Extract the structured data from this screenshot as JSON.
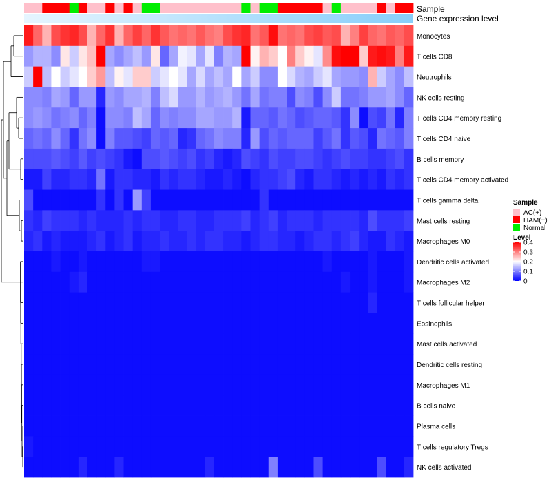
{
  "chart_data": {
    "type": "heatmap",
    "annotations": {
      "sample_label": "Sample",
      "gene_label": "Gene expression level",
      "sample_groups": [
        "AC",
        "AC",
        "HAM",
        "HAM",
        "HAM",
        "Normal",
        "HAM",
        "AC",
        "AC",
        "HAM",
        "AC",
        "HAM",
        "AC",
        "Normal",
        "Normal",
        "AC",
        "AC",
        "AC",
        "AC",
        "AC",
        "AC",
        "AC",
        "AC",
        "AC",
        "Normal",
        "AC",
        "Normal",
        "Normal",
        "HAM",
        "HAM",
        "HAM",
        "HAM",
        "HAM",
        "AC",
        "Normal",
        "AC",
        "AC",
        "AC",
        "AC",
        "HAM",
        "AC",
        "HAM",
        "HAM"
      ]
    },
    "rows": [
      "Monocytes",
      "T cells CD8",
      "Neutrophils",
      "NK cells resting",
      "T cells CD4 memory resting",
      "T cells CD4 naive",
      "B cells memory",
      "T cells CD4 memory activated",
      "T cells gamma delta",
      "Mast cells resting",
      "Macrophages M0",
      "Dendritic cells activated",
      "Macrophages M2",
      "T cells follicular helper",
      "Eosinophils",
      "Mast cells activated",
      "Dendritic cells resting",
      "Macrophages M1",
      "B cells naive",
      "Plasma cells",
      "T cells regulatory  Tregs",
      "NK cells activated"
    ],
    "values": [
      [
        0.38,
        0.32,
        0.26,
        0.34,
        0.36,
        0.37,
        0.34,
        0.26,
        0.32,
        0.36,
        0.26,
        0.32,
        0.35,
        0.32,
        0.36,
        0.33,
        0.31,
        0.32,
        0.31,
        0.33,
        0.31,
        0.3,
        0.34,
        0.36,
        0.37,
        0.31,
        0.33,
        0.39,
        0.31,
        0.32,
        0.31,
        0.34,
        0.35,
        0.33,
        0.34,
        0.26,
        0.3,
        0.35,
        0.32,
        0.31,
        0.33,
        0.32,
        0.34
      ],
      [
        0.12,
        0.14,
        0.14,
        0.11,
        0.22,
        0.16,
        0.22,
        0.25,
        0.4,
        0.13,
        0.11,
        0.13,
        0.15,
        0.12,
        0.22,
        0.08,
        0.13,
        0.19,
        0.18,
        0.13,
        0.18,
        0.1,
        0.14,
        0.13,
        0.4,
        0.21,
        0.26,
        0.24,
        0.2,
        0.3,
        0.24,
        0.21,
        0.18,
        0.29,
        0.39,
        0.4,
        0.4,
        0.24,
        0.38,
        0.39,
        0.38,
        0.3,
        0.38
      ],
      [
        0.16,
        0.4,
        0.15,
        0.2,
        0.16,
        0.18,
        0.2,
        0.24,
        0.28,
        0.15,
        0.21,
        0.18,
        0.24,
        0.24,
        0.16,
        0.18,
        0.2,
        0.18,
        0.13,
        0.17,
        0.13,
        0.15,
        0.13,
        0.2,
        0.13,
        0.16,
        0.11,
        0.11,
        0.2,
        0.17,
        0.14,
        0.13,
        0.16,
        0.18,
        0.13,
        0.12,
        0.12,
        0.11,
        0.26,
        0.16,
        0.13,
        0.11,
        0.15
      ],
      [
        0.11,
        0.11,
        0.1,
        0.13,
        0.12,
        0.08,
        0.12,
        0.12,
        0.03,
        0.12,
        0.11,
        0.13,
        0.13,
        0.14,
        0.1,
        0.15,
        0.17,
        0.12,
        0.12,
        0.14,
        0.12,
        0.13,
        0.14,
        0.12,
        0.09,
        0.13,
        0.09,
        0.1,
        0.1,
        0.06,
        0.11,
        0.1,
        0.06,
        0.11,
        0.16,
        0.09,
        0.09,
        0.1,
        0.12,
        0.12,
        0.13,
        0.11,
        0.08
      ],
      [
        0.11,
        0.12,
        0.11,
        0.09,
        0.1,
        0.11,
        0.08,
        0.1,
        0.01,
        0.11,
        0.11,
        0.1,
        0.15,
        0.13,
        0.08,
        0.11,
        0.1,
        0.11,
        0.11,
        0.13,
        0.13,
        0.12,
        0.12,
        0.14,
        0.02,
        0.08,
        0.08,
        0.07,
        0.09,
        0.08,
        0.06,
        0.07,
        0.08,
        0.08,
        0.07,
        0.04,
        0.11,
        0.01,
        0.06,
        0.05,
        0.09,
        0.03,
        0.1
      ],
      [
        0.08,
        0.09,
        0.08,
        0.11,
        0.08,
        0.04,
        0.09,
        0.11,
        0.01,
        0.1,
        0.07,
        0.07,
        0.06,
        0.05,
        0.08,
        0.07,
        0.08,
        0.03,
        0.04,
        0.08,
        0.09,
        0.11,
        0.1,
        0.1,
        0.03,
        0.12,
        0.06,
        0.08,
        0.07,
        0.08,
        0.08,
        0.08,
        0.05,
        0.07,
        0.09,
        0.04,
        0.07,
        0.06,
        0.03,
        0.09,
        0.08,
        0.07,
        0.1
      ],
      [
        0.06,
        0.06,
        0.06,
        0.07,
        0.06,
        0.05,
        0.07,
        0.05,
        0.06,
        0.05,
        0.04,
        0.02,
        0.01,
        0.06,
        0.06,
        0.07,
        0.06,
        0.05,
        0.06,
        0.04,
        0.05,
        0.03,
        0.02,
        0.03,
        0.06,
        0.05,
        0.04,
        0.06,
        0.05,
        0.05,
        0.06,
        0.06,
        0.05,
        0.04,
        0.05,
        0.06,
        0.05,
        0.05,
        0.04,
        0.04,
        0.05,
        0.06,
        0.04
      ],
      [
        0.02,
        0.02,
        0.05,
        0.03,
        0.03,
        0.04,
        0.04,
        0.03,
        0.09,
        0.02,
        0.04,
        0.04,
        0.03,
        0.03,
        0.02,
        0.04,
        0.03,
        0.04,
        0.04,
        0.03,
        0.02,
        0.02,
        0.03,
        0.02,
        0.01,
        0.03,
        0.04,
        0.04,
        0.05,
        0.06,
        0.03,
        0.02,
        0.04,
        0.04,
        0.03,
        0.02,
        0.03,
        0.02,
        0.03,
        0.02,
        0.04,
        0.03,
        0.04
      ],
      [
        0.06,
        0.01,
        0.01,
        0.01,
        0.01,
        0.01,
        0.01,
        0.01,
        0.04,
        0.01,
        0.04,
        0.01,
        0.12,
        0.05,
        0.01,
        0.01,
        0.01,
        0.01,
        0.01,
        0.01,
        0.01,
        0.01,
        0.01,
        0.01,
        0.01,
        0.01,
        0.04,
        0.01,
        0.01,
        0.01,
        0.01,
        0.01,
        0.01,
        0.01,
        0.01,
        0.01,
        0.01,
        0.01,
        0.01,
        0.01,
        0.01,
        0.01,
        0.01
      ],
      [
        0.04,
        0.03,
        0.05,
        0.04,
        0.04,
        0.04,
        0.03,
        0.04,
        0.03,
        0.03,
        0.03,
        0.04,
        0.03,
        0.04,
        0.04,
        0.03,
        0.03,
        0.04,
        0.04,
        0.03,
        0.03,
        0.04,
        0.04,
        0.04,
        0.05,
        0.03,
        0.04,
        0.05,
        0.03,
        0.04,
        0.04,
        0.04,
        0.03,
        0.04,
        0.04,
        0.04,
        0.04,
        0.03,
        0.06,
        0.04,
        0.04,
        0.04,
        0.05
      ],
      [
        0.03,
        0.04,
        0.02,
        0.03,
        0.02,
        0.02,
        0.02,
        0.03,
        0.04,
        0.02,
        0.03,
        0.04,
        0.02,
        0.03,
        0.03,
        0.04,
        0.03,
        0.03,
        0.04,
        0.03,
        0.04,
        0.04,
        0.03,
        0.03,
        0.02,
        0.03,
        0.04,
        0.04,
        0.03,
        0.03,
        0.02,
        0.03,
        0.04,
        0.04,
        0.03,
        0.04,
        0.05,
        0.03,
        0.02,
        0.02,
        0.04,
        0.03,
        0.02
      ],
      [
        0.01,
        0.01,
        0.01,
        0.02,
        0.01,
        0.01,
        0.02,
        0.01,
        0.01,
        0.01,
        0.01,
        0.01,
        0.01,
        0.02,
        0.02,
        0.01,
        0.01,
        0.01,
        0.01,
        0.01,
        0.01,
        0.01,
        0.01,
        0.01,
        0.01,
        0.01,
        0.01,
        0.01,
        0.01,
        0.01,
        0.01,
        0.01,
        0.01,
        0.02,
        0.01,
        0.01,
        0.01,
        0.01,
        0.02,
        0.01,
        0.01,
        0.01,
        0.02
      ],
      [
        0.01,
        0.01,
        0.01,
        0.01,
        0.01,
        0.02,
        0.03,
        0.01,
        0.01,
        0.01,
        0.01,
        0.01,
        0.01,
        0.01,
        0.01,
        0.01,
        0.01,
        0.01,
        0.01,
        0.01,
        0.01,
        0.01,
        0.01,
        0.01,
        0.01,
        0.01,
        0.01,
        0.01,
        0.01,
        0.01,
        0.01,
        0.01,
        0.01,
        0.01,
        0.01,
        0.02,
        0.01,
        0.01,
        0.02,
        0.01,
        0.01,
        0.01,
        0.02
      ],
      [
        0.01,
        0.01,
        0.01,
        0.01,
        0.01,
        0.01,
        0.01,
        0.01,
        0.01,
        0.01,
        0.01,
        0.01,
        0.01,
        0.01,
        0.01,
        0.01,
        0.01,
        0.01,
        0.01,
        0.01,
        0.01,
        0.01,
        0.01,
        0.01,
        0.01,
        0.01,
        0.01,
        0.01,
        0.01,
        0.01,
        0.01,
        0.01,
        0.01,
        0.01,
        0.01,
        0.01,
        0.01,
        0.01,
        0.03,
        0.01,
        0.01,
        0.01,
        0.01
      ],
      [
        0.01,
        0.01,
        0.01,
        0.01,
        0.01,
        0.01,
        0.01,
        0.01,
        0.01,
        0.01,
        0.01,
        0.01,
        0.01,
        0.01,
        0.01,
        0.01,
        0.01,
        0.01,
        0.01,
        0.01,
        0.01,
        0.01,
        0.01,
        0.01,
        0.01,
        0.01,
        0.01,
        0.01,
        0.01,
        0.01,
        0.01,
        0.01,
        0.01,
        0.01,
        0.01,
        0.01,
        0.01,
        0.01,
        0.01,
        0.01,
        0.01,
        0.01,
        0.01
      ],
      [
        0.01,
        0.01,
        0.01,
        0.01,
        0.01,
        0.01,
        0.01,
        0.01,
        0.01,
        0.01,
        0.01,
        0.01,
        0.01,
        0.01,
        0.01,
        0.01,
        0.01,
        0.01,
        0.01,
        0.01,
        0.01,
        0.01,
        0.01,
        0.01,
        0.01,
        0.01,
        0.01,
        0.01,
        0.01,
        0.01,
        0.01,
        0.01,
        0.01,
        0.01,
        0.01,
        0.01,
        0.01,
        0.01,
        0.01,
        0.01,
        0.01,
        0.01,
        0.01
      ],
      [
        0.01,
        0.01,
        0.01,
        0.01,
        0.01,
        0.01,
        0.01,
        0.01,
        0.01,
        0.01,
        0.01,
        0.01,
        0.01,
        0.01,
        0.01,
        0.01,
        0.01,
        0.01,
        0.01,
        0.01,
        0.01,
        0.01,
        0.01,
        0.01,
        0.01,
        0.01,
        0.01,
        0.01,
        0.01,
        0.01,
        0.01,
        0.01,
        0.01,
        0.01,
        0.01,
        0.01,
        0.01,
        0.01,
        0.01,
        0.01,
        0.01,
        0.01,
        0.01
      ],
      [
        0.01,
        0.01,
        0.01,
        0.01,
        0.01,
        0.01,
        0.01,
        0.01,
        0.01,
        0.01,
        0.01,
        0.01,
        0.01,
        0.01,
        0.01,
        0.01,
        0.01,
        0.01,
        0.01,
        0.01,
        0.01,
        0.01,
        0.01,
        0.01,
        0.01,
        0.01,
        0.01,
        0.01,
        0.01,
        0.01,
        0.01,
        0.01,
        0.01,
        0.01,
        0.01,
        0.01,
        0.01,
        0.01,
        0.01,
        0.01,
        0.01,
        0.01,
        0.01
      ],
      [
        0.01,
        0.01,
        0.01,
        0.01,
        0.01,
        0.01,
        0.01,
        0.01,
        0.01,
        0.01,
        0.01,
        0.01,
        0.01,
        0.01,
        0.01,
        0.01,
        0.01,
        0.01,
        0.01,
        0.01,
        0.01,
        0.01,
        0.01,
        0.01,
        0.01,
        0.01,
        0.01,
        0.01,
        0.01,
        0.01,
        0.01,
        0.01,
        0.01,
        0.01,
        0.01,
        0.01,
        0.01,
        0.01,
        0.01,
        0.01,
        0.01,
        0.01,
        0.01
      ],
      [
        0.01,
        0.01,
        0.01,
        0.01,
        0.01,
        0.01,
        0.01,
        0.01,
        0.01,
        0.01,
        0.01,
        0.01,
        0.01,
        0.01,
        0.01,
        0.01,
        0.01,
        0.01,
        0.01,
        0.01,
        0.01,
        0.01,
        0.01,
        0.01,
        0.01,
        0.01,
        0.01,
        0.01,
        0.01,
        0.01,
        0.01,
        0.01,
        0.01,
        0.01,
        0.01,
        0.01,
        0.01,
        0.01,
        0.01,
        0.01,
        0.01,
        0.01,
        0.01
      ],
      [
        0.02,
        0.01,
        0.01,
        0.01,
        0.01,
        0.01,
        0.01,
        0.01,
        0.01,
        0.01,
        0.01,
        0.01,
        0.01,
        0.01,
        0.01,
        0.01,
        0.01,
        0.01,
        0.01,
        0.01,
        0.01,
        0.01,
        0.01,
        0.01,
        0.01,
        0.01,
        0.01,
        0.01,
        0.01,
        0.01,
        0.01,
        0.01,
        0.01,
        0.01,
        0.01,
        0.01,
        0.01,
        0.01,
        0.01,
        0.01,
        0.01,
        0.01,
        0.01
      ],
      [
        0.01,
        0.01,
        0.01,
        0.01,
        0.01,
        0.01,
        0.03,
        0.01,
        0.01,
        0.01,
        0.03,
        0.01,
        0.01,
        0.01,
        0.01,
        0.01,
        0.01,
        0.01,
        0.01,
        0.01,
        0.03,
        0.01,
        0.01,
        0.01,
        0.01,
        0.01,
        0.01,
        0.1,
        0.01,
        0.01,
        0.01,
        0.01,
        0.06,
        0.01,
        0.01,
        0.01,
        0.01,
        0.01,
        0.01,
        0.06,
        0.01,
        0.01,
        0.03
      ]
    ],
    "legend": {
      "sample_title": "Sample",
      "sample_entries": [
        {
          "key": "AC",
          "label": "AC(+)",
          "color": "#ffc0cb"
        },
        {
          "key": "HAM",
          "label": "HAM(+)",
          "color": "#ff0000"
        },
        {
          "key": "Normal",
          "label": "Normal",
          "color": "#00ee00"
        }
      ],
      "level_title": "Level",
      "level_ticks": [
        "0.4",
        "0.3",
        "0.2",
        "0.1",
        "0"
      ],
      "level_tick_values": [
        0.4,
        0.3,
        0.2,
        0.1,
        0
      ]
    },
    "colors": {
      "low": "#0000ff",
      "mid": "#ffffff",
      "high": "#ff0000",
      "gene_bar": "#87cefa"
    },
    "value_range": [
      0,
      0.4
    ]
  }
}
